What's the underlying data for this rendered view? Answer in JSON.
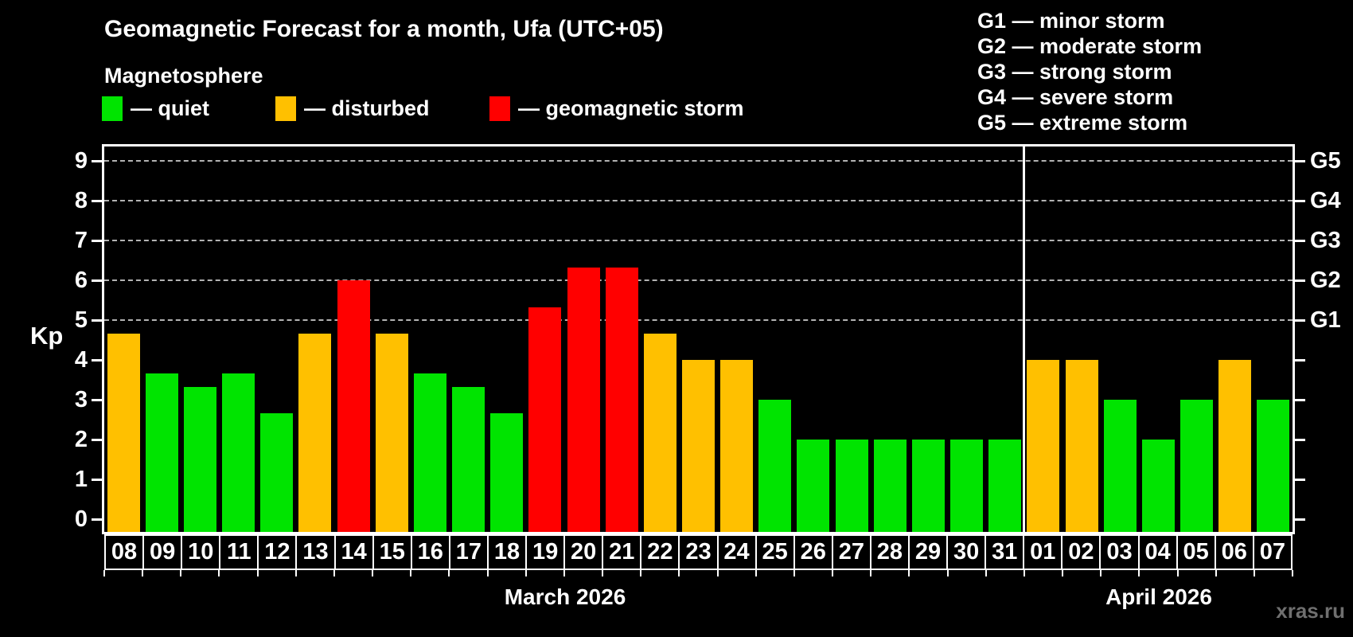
{
  "header": {
    "title": "Geomagnetic Forecast for a month, Ufa (UTC+05)",
    "subtitle": "Magnetosphere"
  },
  "legend": {
    "items": [
      {
        "label": "— quiet",
        "status": "quiet"
      },
      {
        "label": "— disturbed",
        "status": "disturbed"
      },
      {
        "label": "— geomagnetic storm",
        "status": "storm"
      }
    ]
  },
  "storm_scale_legend": {
    "lines": [
      "G1 — minor storm",
      "G2 — moderate storm",
      "G3 — strong storm",
      "G4 — severe storm",
      "G5 — extreme storm"
    ]
  },
  "watermark": "xras.ru",
  "chart_data": {
    "type": "bar",
    "title": "Geomagnetic Forecast for a month, Ufa (UTC+05)",
    "ylabel": "Kp",
    "ylim": [
      0,
      9.4
    ],
    "y_ticks": [
      0,
      1,
      2,
      3,
      4,
      5,
      6,
      7,
      8,
      9
    ],
    "gridlines_at": [
      5,
      6,
      7,
      8,
      9
    ],
    "grid": "dashed-horizontal-on-storm-levels-only",
    "legend_position": "top",
    "right_axis_labels": [
      {
        "kp": 5,
        "label": "G1"
      },
      {
        "kp": 6,
        "label": "G2"
      },
      {
        "kp": 7,
        "label": "G3"
      },
      {
        "kp": 8,
        "label": "G4"
      },
      {
        "kp": 9,
        "label": "G5"
      }
    ],
    "colors": {
      "quiet": "#00e400",
      "disturbed": "#ffc000",
      "storm": "#ff0000",
      "background": "#000000",
      "text": "#ffffff",
      "gridline": "#b3b3b3",
      "watermark": "#6f6f6f"
    },
    "sections": [
      {
        "label": "March 2026",
        "days": [
          {
            "date": "08",
            "kp": 4.67,
            "status": "disturbed"
          },
          {
            "date": "09",
            "kp": 3.67,
            "status": "quiet"
          },
          {
            "date": "10",
            "kp": 3.33,
            "status": "quiet"
          },
          {
            "date": "11",
            "kp": 3.67,
            "status": "quiet"
          },
          {
            "date": "12",
            "kp": 2.67,
            "status": "quiet"
          },
          {
            "date": "13",
            "kp": 4.67,
            "status": "disturbed"
          },
          {
            "date": "14",
            "kp": 6.0,
            "status": "storm"
          },
          {
            "date": "15",
            "kp": 4.67,
            "status": "disturbed"
          },
          {
            "date": "16",
            "kp": 3.67,
            "status": "quiet"
          },
          {
            "date": "17",
            "kp": 3.33,
            "status": "quiet"
          },
          {
            "date": "18",
            "kp": 2.67,
            "status": "quiet"
          },
          {
            "date": "19",
            "kp": 5.33,
            "status": "storm"
          },
          {
            "date": "20",
            "kp": 6.33,
            "status": "storm"
          },
          {
            "date": "21",
            "kp": 6.33,
            "status": "storm"
          },
          {
            "date": "22",
            "kp": 4.67,
            "status": "disturbed"
          },
          {
            "date": "23",
            "kp": 4.0,
            "status": "disturbed"
          },
          {
            "date": "24",
            "kp": 4.0,
            "status": "disturbed"
          },
          {
            "date": "25",
            "kp": 3.0,
            "status": "quiet"
          },
          {
            "date": "26",
            "kp": 2.0,
            "status": "quiet"
          },
          {
            "date": "27",
            "kp": 2.0,
            "status": "quiet"
          },
          {
            "date": "28",
            "kp": 2.0,
            "status": "quiet"
          },
          {
            "date": "29",
            "kp": 2.0,
            "status": "quiet"
          },
          {
            "date": "30",
            "kp": 2.0,
            "status": "quiet"
          },
          {
            "date": "31",
            "kp": 2.0,
            "status": "quiet"
          }
        ]
      },
      {
        "label": "April 2026",
        "days": [
          {
            "date": "01",
            "kp": 4.0,
            "status": "disturbed"
          },
          {
            "date": "02",
            "kp": 4.0,
            "status": "disturbed"
          },
          {
            "date": "03",
            "kp": 3.0,
            "status": "quiet"
          },
          {
            "date": "04",
            "kp": 2.0,
            "status": "quiet"
          },
          {
            "date": "05",
            "kp": 3.0,
            "status": "quiet"
          },
          {
            "date": "06",
            "kp": 4.0,
            "status": "disturbed"
          },
          {
            "date": "07",
            "kp": 3.0,
            "status": "quiet"
          }
        ]
      }
    ]
  }
}
